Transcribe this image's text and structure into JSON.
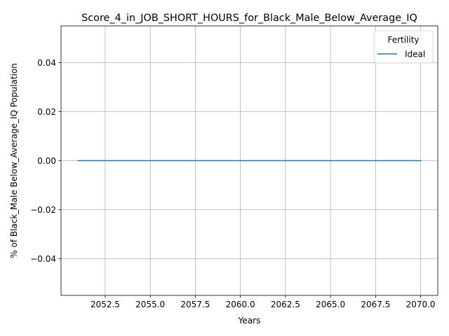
{
  "chart_data": {
    "type": "line",
    "title": "Score_4_in_JOB_SHORT_HOURS_for_Black_Male_Below_Average_IQ",
    "xlabel": "Years",
    "ylabel": "% of Black_Male Below_Average_IQ Population",
    "xlim": [
      2050.05,
      2070.95
    ],
    "ylim": [
      -0.055,
      0.055
    ],
    "xticks": [
      2052.5,
      2055.0,
      2057.5,
      2060.0,
      2062.5,
      2065.0,
      2067.5,
      2070.0
    ],
    "xtick_labels": [
      "2052.5",
      "2055.0",
      "2057.5",
      "2060.0",
      "2062.5",
      "2065.0",
      "2067.5",
      "2070.0"
    ],
    "yticks": [
      -0.04,
      -0.02,
      0.0,
      0.02,
      0.04
    ],
    "ytick_labels": [
      "−0.04",
      "−0.02",
      "0.00",
      "0.02",
      "0.04"
    ],
    "grid": true,
    "legend": {
      "title": "Fertility",
      "placement": "top-right"
    },
    "series": [
      {
        "name": "Ideal",
        "color": "#1f77b4",
        "x": [
          2051,
          2052,
          2053,
          2054,
          2055,
          2056,
          2057,
          2058,
          2059,
          2060,
          2061,
          2062,
          2063,
          2064,
          2065,
          2066,
          2067,
          2068,
          2069,
          2070
        ],
        "y": [
          0,
          0,
          0,
          0,
          0,
          0,
          0,
          0,
          0,
          0,
          0,
          0,
          0,
          0,
          0,
          0,
          0,
          0,
          0,
          0
        ]
      }
    ]
  }
}
